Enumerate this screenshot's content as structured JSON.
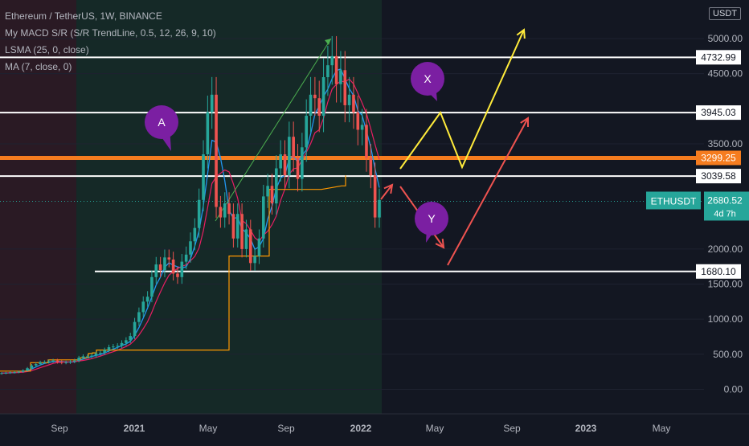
{
  "header": {
    "title": "Ethereum / TetherUS, 1W, BINANCE",
    "indicators": [
      "My MACD S/R (S/R TrendLine, 0.5, 12, 26, 9, 10)",
      "LSMA (25, 0, close)",
      "MA (7, close, 0)"
    ],
    "currency": "USDT"
  },
  "chart_data": {
    "type": "line",
    "ylim": [
      -350,
      5550
    ],
    "y_ticks": [
      0,
      500,
      1000,
      1500,
      2000,
      3500,
      4500,
      5000
    ],
    "y_tick_labels": [
      "0.00",
      "500.00",
      "1000.00",
      "1500.00",
      "2000.00",
      "3500.00",
      "4500.00",
      "5000.00"
    ],
    "x_tick_labels": [
      "Sep",
      "2021",
      "May",
      "Sep",
      "2022",
      "May",
      "Sep",
      "2023",
      "May"
    ],
    "price_levels": [
      {
        "label": "4732.99",
        "value": 4732.99,
        "color": "#ffffff"
      },
      {
        "label": "3945.03",
        "value": 3945.03,
        "color": "#ffffff"
      },
      {
        "label": "3299.25",
        "value": 3299.25,
        "color": "#f57c1f"
      },
      {
        "label": "3039.58",
        "value": 3039.58,
        "color": "#ffffff"
      },
      {
        "label": "1680.10",
        "value": 1680.1,
        "color": "#ffffff"
      }
    ],
    "current_price": {
      "symbol": "ETHUSDT",
      "value": 2680.52,
      "label": "2680.52",
      "countdown": "4d 7h",
      "color": "#26a69a"
    },
    "annotations": [
      "A",
      "X",
      "Y"
    ],
    "weekly_closes": [
      230,
      235,
      240,
      245,
      250,
      270,
      300,
      340,
      360,
      385,
      390,
      400,
      410,
      390,
      380,
      385,
      395,
      410,
      450,
      470,
      470,
      480,
      510,
      520,
      560,
      600,
      610,
      620,
      660,
      700,
      760,
      960,
      1100,
      1250,
      1320,
      1600,
      1780,
      1700,
      1880,
      1850,
      1650,
      1600,
      1820,
      1920,
      2110,
      2300,
      2700,
      3350,
      3950,
      4200,
      2600,
      2450,
      2650,
      2500,
      2150,
      2500,
      2000,
      2280,
      1800,
      1900,
      2150,
      2750,
      2900,
      2650,
      3150,
      3350,
      3050,
      3600,
      3300,
      3000,
      3450,
      3900,
      4200,
      4150,
      3900,
      4450,
      4620,
      4750,
      4350,
      4550,
      4050,
      4200,
      3950,
      3700,
      3770,
      3300,
      3050,
      2450,
      2700
    ]
  }
}
